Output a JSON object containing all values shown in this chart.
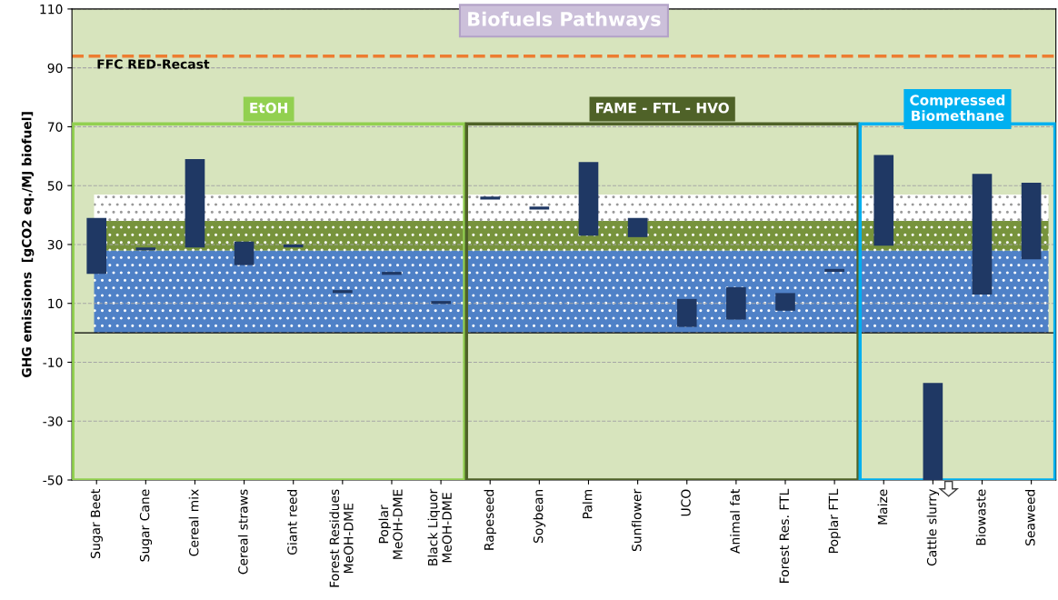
{
  "chart_data": {
    "type": "bar",
    "title": "Biofuels Pathways",
    "ylabel": "GHG emissions  [gCO2 eq./MJ biofuel]",
    "categories": [
      "Sugar Beet",
      "Sugar Cane",
      "Cereal mix",
      "Cereal straws",
      "Giant reed",
      "Forest Residues\nMeOH-DME",
      "Poplar\nMeOH-DME",
      "Black Liquor\nMeOH-DME",
      "Rapeseed",
      "Soybean",
      "Palm",
      "Sunflower",
      "UCO",
      "Animal fat",
      "Forest Res. FTL",
      "Poplar FTL",
      "Maize",
      "Cattle slurry",
      "Biowaste",
      "Seaweed"
    ],
    "base": [
      20,
      28,
      29,
      23,
      29,
      13.5,
      19.7,
      9.8,
      45.3,
      41.9,
      33,
      32.5,
      2,
      4.5,
      7.5,
      20.7,
      29.6,
      -50,
      13,
      25
    ],
    "values": [
      19,
      1,
      30,
      8,
      1,
      1,
      1,
      1,
      1,
      1,
      25,
      6.5,
      9.5,
      11,
      6,
      1,
      30.8,
      33,
      41,
      26
    ],
    "color": "#1f3864",
    "ylim": [
      -50,
      110
    ],
    "yticks": [
      -50,
      -30,
      -10,
      10,
      30,
      50,
      70,
      90,
      110
    ],
    "grid": "y",
    "ref_lines": [
      {
        "axis": "y",
        "value": 94,
        "label": "FFC RED-Recast",
        "color": "#ed7d31",
        "line_style": "dashed"
      },
      {
        "axis": "y",
        "value": 0,
        "color": "#000000",
        "line_style": "solid"
      }
    ],
    "bands": [
      {
        "axis": "y",
        "from": 0,
        "to": 28,
        "color": "#4f81c7"
      },
      {
        "axis": "y",
        "from": 28,
        "to": 38,
        "color": "#77933c"
      },
      {
        "axis": "y",
        "from": 38,
        "to": 47,
        "color": "#ffffff"
      }
    ],
    "annotations": [
      "EtOH",
      "FAME - FTL - HVO",
      "Compressed\nBiomethane"
    ]
  }
}
